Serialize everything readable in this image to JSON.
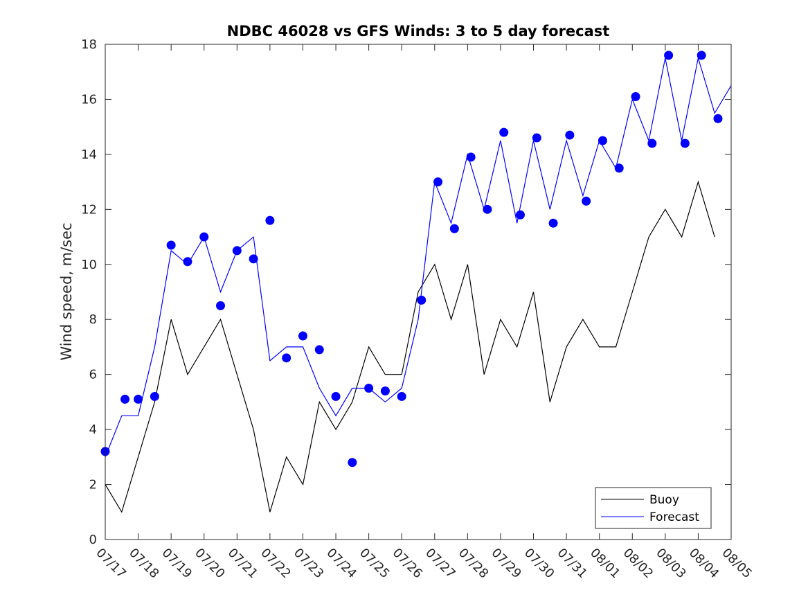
{
  "chart_data": {
    "type": "line",
    "title": "NDBC 46028 vs GFS Winds: 3 to 5 day forecast",
    "xlabel": "",
    "ylabel": "Wind speed, m/sec",
    "ylim": [
      0,
      18
    ],
    "yticks": [
      0,
      2,
      4,
      6,
      8,
      10,
      12,
      14,
      16,
      18
    ],
    "xlim_days": [
      0,
      19
    ],
    "xtick_labels": [
      "07/17",
      "07/18",
      "07/19",
      "07/20",
      "07/21",
      "07/22",
      "07/23",
      "07/24",
      "07/25",
      "07/26",
      "07/27",
      "07/28",
      "07/29",
      "07/30",
      "07/31",
      "08/01",
      "08/02",
      "08/03",
      "08/04",
      "08/05"
    ],
    "grid": false,
    "legend": {
      "position": "bottom-right",
      "entries": [
        "Buoy",
        "Forecast"
      ]
    },
    "colors": {
      "buoy": "#000000",
      "forecast": "#0000ff",
      "markers": "#0000ff"
    },
    "series": [
      {
        "name": "Buoy",
        "x": [
          0,
          0.5,
          1,
          1.5,
          2,
          2.5,
          3,
          3.5,
          4,
          4.5,
          5,
          5.5,
          6,
          6.5,
          7,
          7.5,
          8,
          8.5,
          9,
          9.5,
          10,
          10.5,
          11,
          11.5,
          12,
          12.5,
          13,
          13.5,
          14,
          14.5,
          15,
          15.5,
          16,
          16.5,
          17,
          17.5,
          18,
          18.5,
          19
        ],
        "values": [
          2,
          1,
          3,
          5,
          8,
          6,
          7,
          8,
          6,
          4,
          1,
          3,
          2,
          5,
          4,
          5,
          7,
          6,
          6,
          9,
          10,
          8,
          10,
          6,
          8,
          7,
          9,
          5,
          7,
          8,
          7,
          7,
          9,
          11,
          12,
          11,
          13,
          11,
          null
        ]
      },
      {
        "name": "Forecast",
        "x": [
          0,
          0.5,
          1,
          1.5,
          2,
          2.5,
          3,
          3.5,
          4,
          4.5,
          5,
          5.5,
          6,
          6.5,
          7,
          7.5,
          8,
          8.5,
          9,
          9.5,
          10,
          10.5,
          11,
          11.5,
          12,
          12.5,
          13,
          13.5,
          14,
          14.5,
          15,
          15.5,
          16,
          16.5,
          17,
          17.5,
          18,
          18.5,
          19
        ],
        "values": [
          3,
          4.5,
          4.5,
          7,
          10.5,
          10,
          11,
          9,
          10.5,
          11,
          6.5,
          7,
          7,
          5.5,
          4.5,
          5.5,
          5.5,
          5,
          5.5,
          8,
          13,
          11.5,
          14,
          12,
          14.5,
          11.5,
          14.5,
          12,
          14.5,
          12.5,
          14.5,
          13.5,
          16,
          14.5,
          17.5,
          14.5,
          17.5,
          15.5,
          16.5
        ]
      }
    ],
    "forecast_points": {
      "x": [
        0,
        0.6,
        1,
        1.5,
        2,
        2.5,
        3,
        3.5,
        4,
        4.5,
        5,
        5.5,
        6,
        6.5,
        7,
        7.5,
        8,
        8.5,
        9,
        9.6,
        10.1,
        10.6,
        11.1,
        11.6,
        12.1,
        12.6,
        13.1,
        13.6,
        14.1,
        14.6,
        15.1,
        15.6,
        16.1,
        16.6,
        17.1,
        17.6,
        18.1,
        18.6
      ],
      "values": [
        3.2,
        5.1,
        5.1,
        5.2,
        10.7,
        10.1,
        11,
        8.5,
        10.5,
        10.2,
        11.6,
        6.6,
        7.4,
        6.9,
        5.2,
        2.8,
        5.5,
        5.4,
        5.2,
        8.7,
        13,
        11.3,
        13.9,
        12,
        14.8,
        11.8,
        14.6,
        11.5,
        14.7,
        12.3,
        14.5,
        13.5,
        16.1,
        14.4,
        17.6,
        14.4,
        17.6,
        15.3
      ]
    }
  }
}
